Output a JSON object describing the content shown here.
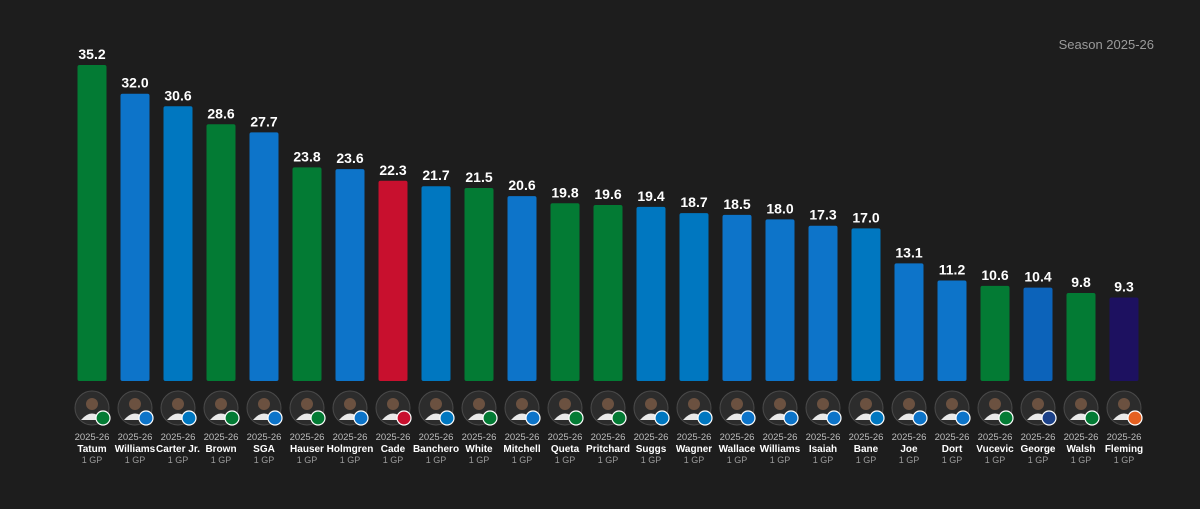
{
  "season_label": "Season 2025-26",
  "colors": {
    "background": "#1d1d1d",
    "celtics_green": "#037b34",
    "thunder_blue": "#0d74c9",
    "pistons_red": "#c8102e",
    "magic_blue": "#0077c0",
    "pelicans_blue": "#0c63ba",
    "suns_purple": "#1d1160"
  },
  "chart_data": {
    "type": "bar",
    "title": "",
    "xlabel": "",
    "ylabel": "",
    "ylim": [
      0,
      35.2
    ],
    "grid": false,
    "categories": [
      "Tatum",
      "Williams",
      "Carter Jr.",
      "Brown",
      "SGA",
      "Hauser",
      "Holmgren",
      "Cade",
      "Banchero",
      "White",
      "Mitchell",
      "Queta",
      "Pritchard",
      "Suggs",
      "Wagner",
      "Wallace",
      "Williams",
      "Isaiah",
      "Bane",
      "Joe",
      "Dort",
      "Vucevic",
      "George",
      "Walsh",
      "Fleming"
    ],
    "values": [
      35.2,
      32.0,
      30.6,
      28.6,
      27.7,
      23.8,
      23.6,
      22.3,
      21.7,
      21.5,
      20.6,
      19.8,
      19.6,
      19.4,
      18.7,
      18.5,
      18.0,
      17.3,
      17.0,
      13.1,
      11.2,
      10.6,
      10.4,
      9.8,
      9.3
    ],
    "value_labels": [
      "35.2",
      "32.0",
      "30.6",
      "28.6",
      "27.7",
      "23.8",
      "23.6",
      "22.3",
      "21.7",
      "21.5",
      "20.6",
      "19.8",
      "19.6",
      "19.4",
      "18.7",
      "18.5",
      "18.0",
      "17.3",
      "17.0",
      "13.1",
      "11.2",
      "10.6",
      "10.4",
      "9.8",
      "9.3"
    ],
    "season_labels": [
      "2025-26",
      "2025-26",
      "2025-26",
      "2025-26",
      "2025-26",
      "2025-26",
      "2025-26",
      "2025-26",
      "2025-26",
      "2025-26",
      "2025-26",
      "2025-26",
      "2025-26",
      "2025-26",
      "2025-26",
      "2025-26",
      "2025-26",
      "2025-26",
      "2025-26",
      "2025-26",
      "2025-26",
      "2025-26",
      "2025-26",
      "2025-26",
      "2025-26"
    ],
    "gp_labels": [
      "1 GP",
      "1 GP",
      "1 GP",
      "1 GP",
      "1 GP",
      "1 GP",
      "1 GP",
      "1 GP",
      "1 GP",
      "1 GP",
      "1 GP",
      "1 GP",
      "1 GP",
      "1 GP",
      "1 GP",
      "1 GP",
      "1 GP",
      "1 GP",
      "1 GP",
      "1 GP",
      "1 GP",
      "1 GP",
      "1 GP",
      "1 GP",
      "1 GP"
    ],
    "bar_colors": [
      "#037b34",
      "#0d74c9",
      "#0077c0",
      "#037b34",
      "#0d74c9",
      "#037b34",
      "#0d74c9",
      "#c8102e",
      "#0077c0",
      "#037b34",
      "#0d74c9",
      "#037b34",
      "#037b34",
      "#0077c0",
      "#0077c0",
      "#0d74c9",
      "#0d74c9",
      "#0d74c9",
      "#0077c0",
      "#0d74c9",
      "#0d74c9",
      "#037b34",
      "#0c63ba",
      "#037b34",
      "#1d1160"
    ],
    "team_badges": [
      "celtics",
      "thunder",
      "magic",
      "celtics",
      "thunder",
      "celtics",
      "thunder",
      "pistons",
      "magic",
      "celtics",
      "thunder",
      "celtics",
      "celtics",
      "magic",
      "magic",
      "thunder",
      "thunder",
      "thunder",
      "magic",
      "thunder",
      "thunder",
      "celtics",
      "clippers",
      "celtics",
      "suns"
    ],
    "avatar_icons": [
      "player-headshot-icon",
      "player-headshot-icon",
      "player-headshot-icon",
      "player-headshot-icon",
      "player-headshot-icon",
      "player-headshot-icon",
      "player-headshot-icon",
      "player-headshot-icon",
      "player-headshot-icon",
      "player-headshot-icon",
      "player-headshot-icon",
      "player-headshot-icon",
      "player-headshot-icon",
      "player-headshot-icon",
      "player-headshot-icon",
      "player-headshot-icon",
      "player-headshot-icon",
      "player-headshot-icon",
      "player-headshot-icon",
      "player-headshot-icon",
      "player-headshot-icon",
      "player-headshot-icon",
      "player-headshot-icon",
      "player-headshot-icon",
      "player-headshot-icon"
    ]
  }
}
